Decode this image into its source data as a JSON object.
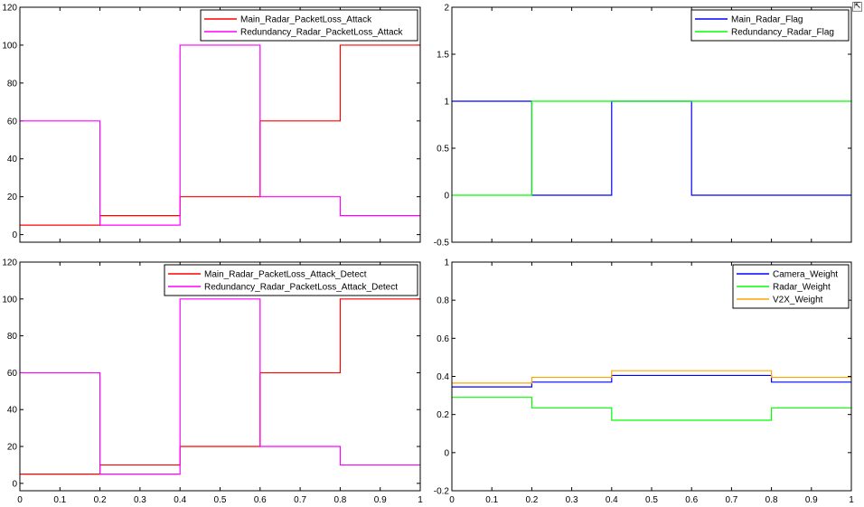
{
  "toolbar": {
    "dock_icon": "⇱"
  },
  "chart_data": [
    {
      "type": "line",
      "step": true,
      "xlim": [
        0,
        1
      ],
      "ylim": [
        -4,
        120
      ],
      "xticks": [],
      "yticks": [
        0,
        20,
        40,
        60,
        80,
        100,
        120
      ],
      "legend_position": "top-right",
      "series": [
        {
          "name": "Main_Radar_PacketLoss_Attack",
          "color": "#ff0000",
          "x": [
            0,
            0.2,
            0.4,
            0.6,
            0.8,
            1
          ],
          "y": [
            5,
            10,
            20,
            60,
            100,
            100
          ]
        },
        {
          "name": "Redundancy_Radar_PacketLoss_Attack",
          "color": "#ff00ff",
          "x": [
            0,
            0.2,
            0.4,
            0.6,
            0.8,
            1
          ],
          "y": [
            60,
            5,
            100,
            20,
            10,
            10
          ]
        }
      ]
    },
    {
      "type": "line",
      "step": true,
      "xlim": [
        0,
        1
      ],
      "ylim": [
        -0.5,
        2
      ],
      "xticks": [],
      "yticks": [
        -0.5,
        0,
        0.5,
        1,
        1.5,
        2
      ],
      "legend_position": "top-right",
      "series": [
        {
          "name": "Main_Radar_Flag",
          "color": "#0000ff",
          "x": [
            0,
            0.2,
            0.4,
            0.6,
            1
          ],
          "y": [
            1,
            0,
            1,
            0,
            0
          ]
        },
        {
          "name": "Redundancy_Radar_Flag",
          "color": "#00ff00",
          "x": [
            0,
            0.2,
            0.4,
            0.6,
            1
          ],
          "y": [
            0,
            1,
            1,
            1,
            1
          ]
        }
      ]
    },
    {
      "type": "line",
      "step": true,
      "xlim": [
        0,
        1
      ],
      "ylim": [
        -4,
        120
      ],
      "xticks": [
        0,
        0.1,
        0.2,
        0.3,
        0.4,
        0.5,
        0.6,
        0.7,
        0.8,
        0.9,
        1
      ],
      "yticks": [
        0,
        20,
        40,
        60,
        80,
        100,
        120
      ],
      "legend_position": "top-right",
      "series": [
        {
          "name": "Main_Radar_PacketLoss_Attack_Detect",
          "color": "#ff0000",
          "x": [
            0,
            0.2,
            0.4,
            0.6,
            0.8,
            1
          ],
          "y": [
            5,
            10,
            20,
            60,
            100,
            100
          ]
        },
        {
          "name": "Redundancy_Radar_PacketLoss_Attack_Detect",
          "color": "#ff00ff",
          "x": [
            0,
            0.2,
            0.4,
            0.6,
            0.8,
            1
          ],
          "y": [
            60,
            5,
            100,
            20,
            10,
            10
          ]
        }
      ]
    },
    {
      "type": "line",
      "step": true,
      "xlim": [
        0,
        1
      ],
      "ylim": [
        -0.2,
        1
      ],
      "xticks": [
        0,
        0.1,
        0.2,
        0.3,
        0.4,
        0.5,
        0.6,
        0.7,
        0.8,
        0.9,
        1
      ],
      "yticks": [
        -0.2,
        0,
        0.2,
        0.4,
        0.6,
        0.8,
        1
      ],
      "legend_position": "top-right",
      "series": [
        {
          "name": "Camera_Weight",
          "color": "#0000ff",
          "x": [
            0,
            0.2,
            0.4,
            0.8,
            1
          ],
          "y": [
            0.345,
            0.37,
            0.405,
            0.37,
            0.37
          ]
        },
        {
          "name": "Radar_Weight",
          "color": "#00ff00",
          "x": [
            0,
            0.2,
            0.4,
            0.8,
            1
          ],
          "y": [
            0.29,
            0.235,
            0.17,
            0.235,
            0.235
          ]
        },
        {
          "name": "V2X_Weight",
          "color": "#ffa500",
          "x": [
            0,
            0.2,
            0.4,
            0.8,
            1
          ],
          "y": [
            0.365,
            0.395,
            0.43,
            0.395,
            0.395
          ]
        }
      ]
    }
  ]
}
